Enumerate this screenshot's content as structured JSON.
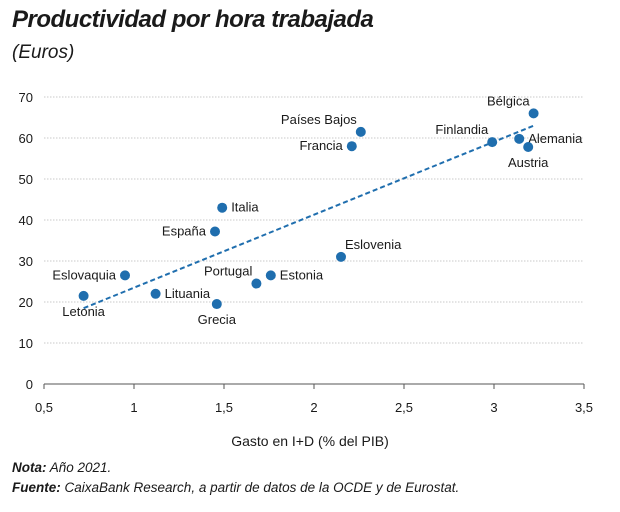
{
  "title": "Productividad por hora trabajada",
  "subtitle": "(Euros)",
  "notes": {
    "nota_label": "Nota:",
    "nota_text": " Año 2021.",
    "fuente_label": "Fuente:",
    "fuente_text": " CaixaBank Research, a partir de datos de la OCDE y de Eurostat."
  },
  "colors": {
    "points": "#1f6eae",
    "trend": "#1f6eae",
    "grid": "#b9b9b9",
    "axis": "#555555"
  },
  "chart_data": {
    "type": "scatter",
    "title": "Productividad por hora trabajada",
    "subtitle": "(Euros)",
    "xlabel": "Gasto en I+D (% del PIB)",
    "ylabel": "",
    "xlim": [
      0.5,
      3.5
    ],
    "ylim": [
      0,
      70
    ],
    "xticks": [
      0.5,
      1,
      1.5,
      2,
      2.5,
      3,
      3.5
    ],
    "xtick_labels": [
      "0,5",
      "1",
      "1,5",
      "2",
      "2,5",
      "3",
      "3,5"
    ],
    "yticks": [
      0,
      10,
      20,
      30,
      40,
      50,
      60,
      70
    ],
    "ytick_labels": [
      "0",
      "10",
      "20",
      "30",
      "40",
      "50",
      "60",
      "70"
    ],
    "grid": "horizontal",
    "points": [
      {
        "label": "Letonia",
        "x": 0.72,
        "y": 21.5,
        "label_pos": "below"
      },
      {
        "label": "Eslovaquia",
        "x": 0.95,
        "y": 26.5,
        "label_pos": "left"
      },
      {
        "label": "Lituania",
        "x": 1.12,
        "y": 22.0,
        "label_pos": "right"
      },
      {
        "label": "España",
        "x": 1.45,
        "y": 37.2,
        "label_pos": "left"
      },
      {
        "label": "Italia",
        "x": 1.49,
        "y": 43.0,
        "label_pos": "right"
      },
      {
        "label": "Grecia",
        "x": 1.46,
        "y": 19.5,
        "label_pos": "below"
      },
      {
        "label": "Portugal",
        "x": 1.68,
        "y": 24.5,
        "label_pos": "above-left"
      },
      {
        "label": "Estonia",
        "x": 1.76,
        "y": 26.5,
        "label_pos": "right"
      },
      {
        "label": "Eslovenia",
        "x": 2.15,
        "y": 31.0,
        "label_pos": "above-right"
      },
      {
        "label": "Francia",
        "x": 2.21,
        "y": 58.0,
        "label_pos": "left"
      },
      {
        "label": "Países Bajos",
        "x": 2.26,
        "y": 61.5,
        "label_pos": "above-left"
      },
      {
        "label": "Finlandia",
        "x": 2.99,
        "y": 59.0,
        "label_pos": "above-left"
      },
      {
        "label": "Alemania",
        "x": 3.14,
        "y": 59.8,
        "label_pos": "right"
      },
      {
        "label": "Austria",
        "x": 3.19,
        "y": 57.8,
        "label_pos": "below"
      },
      {
        "label": "Bélgica",
        "x": 3.22,
        "y": 66.0,
        "label_pos": "above-left"
      }
    ],
    "trendline": {
      "x": [
        0.72,
        3.22
      ],
      "y": [
        18.5,
        63.0
      ],
      "style": "dashed"
    }
  }
}
